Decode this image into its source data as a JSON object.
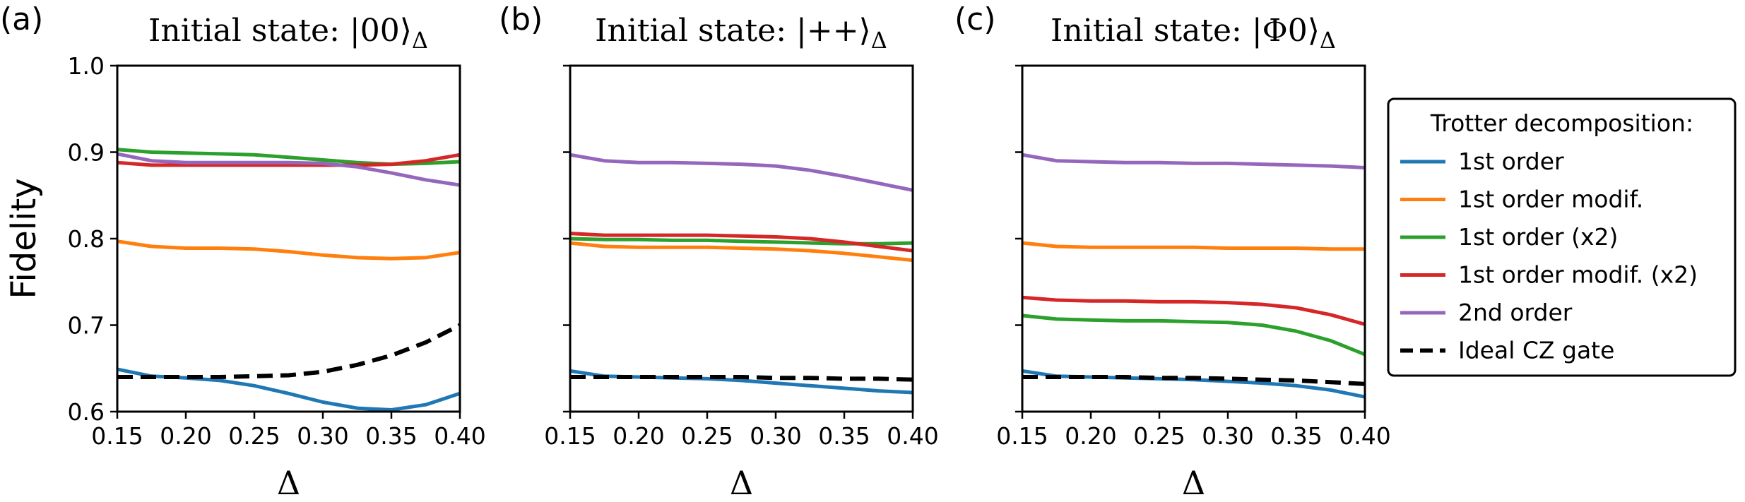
{
  "chart_data": [
    {
      "panel_label": "(a)",
      "title": "Initial state: |00⟩Δ",
      "type": "line",
      "xlabel": "Δ",
      "ylabel": "Fidelity",
      "xlim": [
        0.15,
        0.4
      ],
      "ylim": [
        0.6,
        1.0
      ],
      "x_ticks": [
        "0.15",
        "0.20",
        "0.25",
        "0.30",
        "0.35",
        "0.40"
      ],
      "y_ticks": [
        "0.6",
        "0.7",
        "0.8",
        "0.9",
        "1.0"
      ],
      "x": [
        0.15,
        0.175,
        0.2,
        0.225,
        0.25,
        0.275,
        0.3,
        0.325,
        0.35,
        0.375,
        0.4
      ],
      "series": [
        {
          "name": "1st order",
          "color": "#1f77b4",
          "style": "solid",
          "values": [
            0.649,
            0.641,
            0.639,
            0.636,
            0.63,
            0.621,
            0.611,
            0.604,
            0.602,
            0.608,
            0.621
          ]
        },
        {
          "name": "1st order modif.",
          "color": "#ff7f0e",
          "style": "solid",
          "values": [
            0.797,
            0.791,
            0.789,
            0.789,
            0.788,
            0.785,
            0.781,
            0.778,
            0.777,
            0.778,
            0.784
          ]
        },
        {
          "name": "1st order (x2)",
          "color": "#2ca02c",
          "style": "solid",
          "values": [
            0.903,
            0.9,
            0.899,
            0.898,
            0.897,
            0.894,
            0.891,
            0.888,
            0.886,
            0.887,
            0.889
          ]
        },
        {
          "name": "1st order modif. (x2)",
          "color": "#d62728",
          "style": "solid",
          "values": [
            0.888,
            0.885,
            0.885,
            0.885,
            0.885,
            0.885,
            0.885,
            0.885,
            0.886,
            0.89,
            0.897
          ]
        },
        {
          "name": "2nd order",
          "color": "#9467bd",
          "style": "solid",
          "values": [
            0.898,
            0.89,
            0.888,
            0.888,
            0.888,
            0.888,
            0.887,
            0.883,
            0.876,
            0.868,
            0.862
          ]
        },
        {
          "name": "Ideal CZ gate",
          "color": "#000000",
          "style": "dashed",
          "values": [
            0.64,
            0.64,
            0.64,
            0.64,
            0.641,
            0.642,
            0.646,
            0.654,
            0.665,
            0.68,
            0.7
          ]
        }
      ]
    },
    {
      "panel_label": "(b)",
      "title": "Initial state: |++⟩Δ",
      "type": "line",
      "xlabel": "Δ",
      "ylabel": "",
      "xlim": [
        0.15,
        0.4
      ],
      "ylim": [
        0.6,
        1.0
      ],
      "x_ticks": [
        "0.15",
        "0.20",
        "0.25",
        "0.30",
        "0.35",
        "0.40"
      ],
      "y_ticks": [],
      "x": [
        0.15,
        0.175,
        0.2,
        0.225,
        0.25,
        0.275,
        0.3,
        0.325,
        0.35,
        0.375,
        0.4
      ],
      "series": [
        {
          "name": "1st order",
          "color": "#1f77b4",
          "style": "solid",
          "values": [
            0.647,
            0.641,
            0.64,
            0.639,
            0.638,
            0.636,
            0.633,
            0.63,
            0.627,
            0.624,
            0.622
          ]
        },
        {
          "name": "1st order modif.",
          "color": "#ff7f0e",
          "style": "solid",
          "values": [
            0.795,
            0.791,
            0.79,
            0.79,
            0.79,
            0.789,
            0.788,
            0.786,
            0.783,
            0.779,
            0.775
          ]
        },
        {
          "name": "1st order (x2)",
          "color": "#2ca02c",
          "style": "solid",
          "values": [
            0.8,
            0.799,
            0.799,
            0.798,
            0.798,
            0.797,
            0.796,
            0.795,
            0.794,
            0.794,
            0.795
          ]
        },
        {
          "name": "1st order modif. (x2)",
          "color": "#d62728",
          "style": "solid",
          "values": [
            0.806,
            0.804,
            0.804,
            0.804,
            0.804,
            0.803,
            0.802,
            0.8,
            0.796,
            0.791,
            0.786
          ]
        },
        {
          "name": "2nd order",
          "color": "#9467bd",
          "style": "solid",
          "values": [
            0.897,
            0.89,
            0.888,
            0.888,
            0.887,
            0.886,
            0.884,
            0.879,
            0.872,
            0.864,
            0.856
          ]
        },
        {
          "name": "Ideal CZ gate",
          "color": "#000000",
          "style": "dashed",
          "values": [
            0.64,
            0.64,
            0.64,
            0.64,
            0.64,
            0.64,
            0.639,
            0.639,
            0.638,
            0.638,
            0.637
          ]
        }
      ]
    },
    {
      "panel_label": "(c)",
      "title": "Initial state: |Φ0⟩Δ",
      "type": "line",
      "xlabel": "Δ",
      "ylabel": "",
      "xlim": [
        0.15,
        0.4
      ],
      "ylim": [
        0.6,
        1.0
      ],
      "x_ticks": [
        "0.15",
        "0.20",
        "0.25",
        "0.30",
        "0.35",
        "0.40"
      ],
      "y_ticks": [],
      "x": [
        0.15,
        0.175,
        0.2,
        0.225,
        0.25,
        0.275,
        0.3,
        0.325,
        0.35,
        0.375,
        0.4
      ],
      "series": [
        {
          "name": "1st order",
          "color": "#1f77b4",
          "style": "solid",
          "values": [
            0.647,
            0.641,
            0.64,
            0.639,
            0.638,
            0.637,
            0.635,
            0.633,
            0.63,
            0.625,
            0.617
          ]
        },
        {
          "name": "1st order modif.",
          "color": "#ff7f0e",
          "style": "solid",
          "values": [
            0.795,
            0.791,
            0.79,
            0.79,
            0.79,
            0.79,
            0.789,
            0.789,
            0.789,
            0.788,
            0.788
          ]
        },
        {
          "name": "1st order (x2)",
          "color": "#2ca02c",
          "style": "solid",
          "values": [
            0.711,
            0.707,
            0.706,
            0.705,
            0.705,
            0.704,
            0.703,
            0.7,
            0.693,
            0.682,
            0.666
          ]
        },
        {
          "name": "1st order modif. (x2)",
          "color": "#d62728",
          "style": "solid",
          "values": [
            0.732,
            0.729,
            0.728,
            0.728,
            0.727,
            0.727,
            0.726,
            0.724,
            0.72,
            0.712,
            0.701
          ]
        },
        {
          "name": "2nd order",
          "color": "#9467bd",
          "style": "solid",
          "values": [
            0.897,
            0.89,
            0.889,
            0.888,
            0.888,
            0.887,
            0.887,
            0.886,
            0.885,
            0.884,
            0.882
          ]
        },
        {
          "name": "Ideal CZ gate",
          "color": "#000000",
          "style": "dashed",
          "values": [
            0.64,
            0.64,
            0.64,
            0.64,
            0.639,
            0.639,
            0.638,
            0.637,
            0.636,
            0.634,
            0.632
          ]
        }
      ]
    }
  ],
  "legend": {
    "title": "Trotter decomposition:",
    "placement": "right",
    "entries": [
      {
        "label": "1st order",
        "color": "#1f77b4",
        "style": "solid"
      },
      {
        "label": "1st order modif.",
        "color": "#ff7f0e",
        "style": "solid"
      },
      {
        "label": "1st order (x2)",
        "color": "#2ca02c",
        "style": "solid"
      },
      {
        "label": "1st order modif. (x2)",
        "color": "#d62728",
        "style": "solid"
      },
      {
        "label": "2nd order",
        "color": "#9467bd",
        "style": "solid"
      },
      {
        "label": "Ideal CZ gate",
        "color": "#000000",
        "style": "dashed"
      }
    ]
  }
}
